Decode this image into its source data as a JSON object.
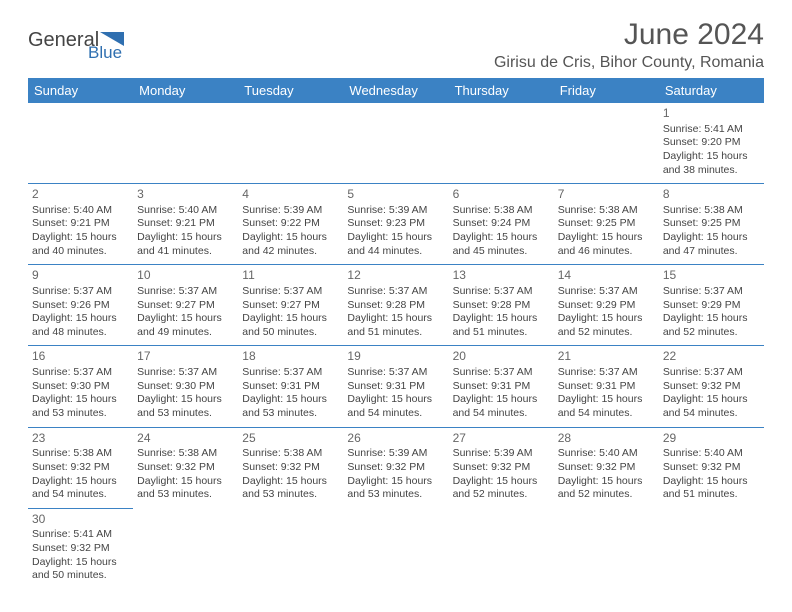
{
  "logo": {
    "text1": "General",
    "text2": "Blue"
  },
  "title": "June 2024",
  "location": "Girisu de Cris, Bihor County, Romania",
  "colors": {
    "header_bg": "#3b82c4",
    "header_fg": "#ffffff",
    "border": "#3b82c4",
    "text": "#444444",
    "title": "#555555"
  },
  "day_names": [
    "Sunday",
    "Monday",
    "Tuesday",
    "Wednesday",
    "Thursday",
    "Friday",
    "Saturday"
  ],
  "weeks": [
    [
      null,
      null,
      null,
      null,
      null,
      null,
      {
        "n": "1",
        "sr": "Sunrise: 5:41 AM",
        "ss": "Sunset: 9:20 PM",
        "dl": "Daylight: 15 hours and 38 minutes."
      }
    ],
    [
      {
        "n": "2",
        "sr": "Sunrise: 5:40 AM",
        "ss": "Sunset: 9:21 PM",
        "dl": "Daylight: 15 hours and 40 minutes."
      },
      {
        "n": "3",
        "sr": "Sunrise: 5:40 AM",
        "ss": "Sunset: 9:21 PM",
        "dl": "Daylight: 15 hours and 41 minutes."
      },
      {
        "n": "4",
        "sr": "Sunrise: 5:39 AM",
        "ss": "Sunset: 9:22 PM",
        "dl": "Daylight: 15 hours and 42 minutes."
      },
      {
        "n": "5",
        "sr": "Sunrise: 5:39 AM",
        "ss": "Sunset: 9:23 PM",
        "dl": "Daylight: 15 hours and 44 minutes."
      },
      {
        "n": "6",
        "sr": "Sunrise: 5:38 AM",
        "ss": "Sunset: 9:24 PM",
        "dl": "Daylight: 15 hours and 45 minutes."
      },
      {
        "n": "7",
        "sr": "Sunrise: 5:38 AM",
        "ss": "Sunset: 9:25 PM",
        "dl": "Daylight: 15 hours and 46 minutes."
      },
      {
        "n": "8",
        "sr": "Sunrise: 5:38 AM",
        "ss": "Sunset: 9:25 PM",
        "dl": "Daylight: 15 hours and 47 minutes."
      }
    ],
    [
      {
        "n": "9",
        "sr": "Sunrise: 5:37 AM",
        "ss": "Sunset: 9:26 PM",
        "dl": "Daylight: 15 hours and 48 minutes."
      },
      {
        "n": "10",
        "sr": "Sunrise: 5:37 AM",
        "ss": "Sunset: 9:27 PM",
        "dl": "Daylight: 15 hours and 49 minutes."
      },
      {
        "n": "11",
        "sr": "Sunrise: 5:37 AM",
        "ss": "Sunset: 9:27 PM",
        "dl": "Daylight: 15 hours and 50 minutes."
      },
      {
        "n": "12",
        "sr": "Sunrise: 5:37 AM",
        "ss": "Sunset: 9:28 PM",
        "dl": "Daylight: 15 hours and 51 minutes."
      },
      {
        "n": "13",
        "sr": "Sunrise: 5:37 AM",
        "ss": "Sunset: 9:28 PM",
        "dl": "Daylight: 15 hours and 51 minutes."
      },
      {
        "n": "14",
        "sr": "Sunrise: 5:37 AM",
        "ss": "Sunset: 9:29 PM",
        "dl": "Daylight: 15 hours and 52 minutes."
      },
      {
        "n": "15",
        "sr": "Sunrise: 5:37 AM",
        "ss": "Sunset: 9:29 PM",
        "dl": "Daylight: 15 hours and 52 minutes."
      }
    ],
    [
      {
        "n": "16",
        "sr": "Sunrise: 5:37 AM",
        "ss": "Sunset: 9:30 PM",
        "dl": "Daylight: 15 hours and 53 minutes."
      },
      {
        "n": "17",
        "sr": "Sunrise: 5:37 AM",
        "ss": "Sunset: 9:30 PM",
        "dl": "Daylight: 15 hours and 53 minutes."
      },
      {
        "n": "18",
        "sr": "Sunrise: 5:37 AM",
        "ss": "Sunset: 9:31 PM",
        "dl": "Daylight: 15 hours and 53 minutes."
      },
      {
        "n": "19",
        "sr": "Sunrise: 5:37 AM",
        "ss": "Sunset: 9:31 PM",
        "dl": "Daylight: 15 hours and 54 minutes."
      },
      {
        "n": "20",
        "sr": "Sunrise: 5:37 AM",
        "ss": "Sunset: 9:31 PM",
        "dl": "Daylight: 15 hours and 54 minutes."
      },
      {
        "n": "21",
        "sr": "Sunrise: 5:37 AM",
        "ss": "Sunset: 9:31 PM",
        "dl": "Daylight: 15 hours and 54 minutes."
      },
      {
        "n": "22",
        "sr": "Sunrise: 5:37 AM",
        "ss": "Sunset: 9:32 PM",
        "dl": "Daylight: 15 hours and 54 minutes."
      }
    ],
    [
      {
        "n": "23",
        "sr": "Sunrise: 5:38 AM",
        "ss": "Sunset: 9:32 PM",
        "dl": "Daylight: 15 hours and 54 minutes."
      },
      {
        "n": "24",
        "sr": "Sunrise: 5:38 AM",
        "ss": "Sunset: 9:32 PM",
        "dl": "Daylight: 15 hours and 53 minutes."
      },
      {
        "n": "25",
        "sr": "Sunrise: 5:38 AM",
        "ss": "Sunset: 9:32 PM",
        "dl": "Daylight: 15 hours and 53 minutes."
      },
      {
        "n": "26",
        "sr": "Sunrise: 5:39 AM",
        "ss": "Sunset: 9:32 PM",
        "dl": "Daylight: 15 hours and 53 minutes."
      },
      {
        "n": "27",
        "sr": "Sunrise: 5:39 AM",
        "ss": "Sunset: 9:32 PM",
        "dl": "Daylight: 15 hours and 52 minutes."
      },
      {
        "n": "28",
        "sr": "Sunrise: 5:40 AM",
        "ss": "Sunset: 9:32 PM",
        "dl": "Daylight: 15 hours and 52 minutes."
      },
      {
        "n": "29",
        "sr": "Sunrise: 5:40 AM",
        "ss": "Sunset: 9:32 PM",
        "dl": "Daylight: 15 hours and 51 minutes."
      }
    ],
    [
      {
        "n": "30",
        "sr": "Sunrise: 5:41 AM",
        "ss": "Sunset: 9:32 PM",
        "dl": "Daylight: 15 hours and 50 minutes."
      },
      null,
      null,
      null,
      null,
      null,
      null
    ]
  ]
}
